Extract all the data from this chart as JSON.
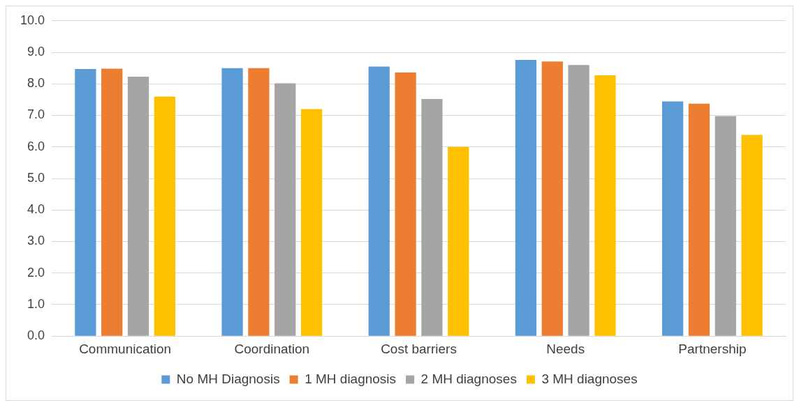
{
  "chart_data": {
    "type": "bar",
    "categories": [
      "Communication",
      "Coordination",
      "Cost barriers",
      "Needs",
      "Partnership"
    ],
    "series": [
      {
        "name": "No MH Diagnosis",
        "color": "#5b9bd5",
        "values": [
          8.47,
          8.5,
          8.55,
          8.76,
          7.44
        ]
      },
      {
        "name": "1 MH diagnosis",
        "color": "#ed7d31",
        "values": [
          8.48,
          8.5,
          8.36,
          8.71,
          7.37
        ]
      },
      {
        "name": "2 MH diagnoses",
        "color": "#a5a5a5",
        "values": [
          8.23,
          8.02,
          7.52,
          8.6,
          6.98
        ]
      },
      {
        "name": "3 MH diagnoses",
        "color": "#ffc000",
        "values": [
          7.6,
          7.2,
          6.0,
          8.27,
          6.38
        ]
      }
    ],
    "ylim": [
      0,
      10
    ],
    "yticks": [
      {
        "value": 0,
        "label": "0.0"
      },
      {
        "value": 1,
        "label": "1.0"
      },
      {
        "value": 2,
        "label": "2.0"
      },
      {
        "value": 3,
        "label": "3.0"
      },
      {
        "value": 4,
        "label": "4.0"
      },
      {
        "value": 5,
        "label": "5.0"
      },
      {
        "value": 6,
        "label": "6.0"
      },
      {
        "value": 7,
        "label": "7.0"
      },
      {
        "value": 8,
        "label": "8.0"
      },
      {
        "value": 9,
        "label": "9.0"
      },
      {
        "value": 10,
        "label": "10.0"
      }
    ],
    "grid": "y",
    "legend": "bottom"
  }
}
